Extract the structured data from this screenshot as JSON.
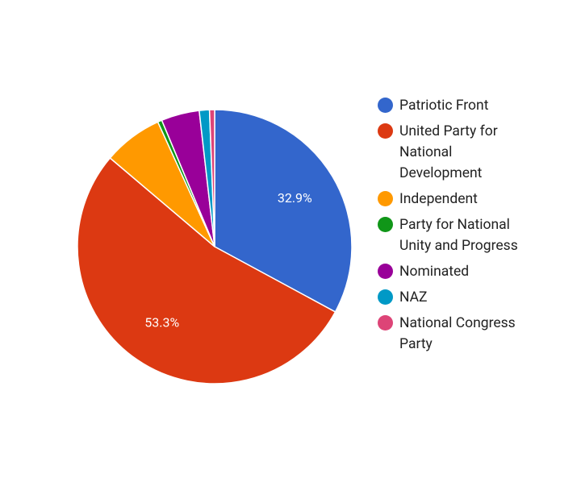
{
  "chart_data": {
    "type": "pie",
    "categories": [
      "Patriotic Front",
      "United Party for National Development",
      "Independent",
      "Party for National Unity and Progress",
      "Nominated",
      "NAZ",
      "National Congress Party"
    ],
    "values": [
      32.9,
      53.3,
      7.0,
      0.5,
      4.5,
      1.2,
      0.6
    ],
    "value_labels": [
      "32.9%",
      "53.3%",
      null,
      null,
      null,
      null,
      null
    ],
    "colors": [
      "#3366cc",
      "#dc3912",
      "#ff9900",
      "#109618",
      "#990099",
      "#0099c6",
      "#dd4477"
    ],
    "legend": "right"
  }
}
